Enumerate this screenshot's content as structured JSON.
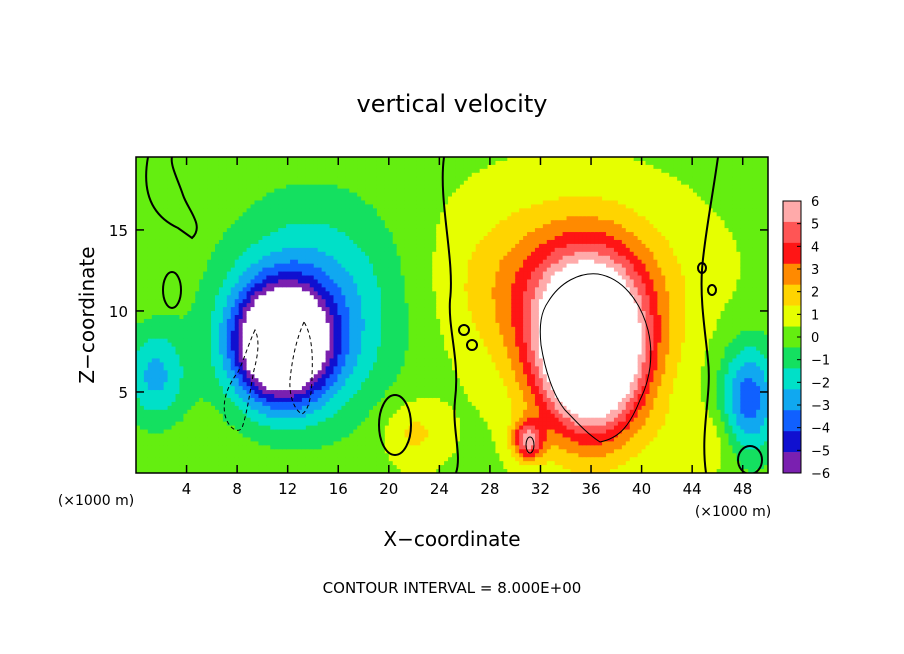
{
  "chart_data": {
    "type": "heatmap",
    "title": "vertical velocity",
    "xlabel": "X−coordinate",
    "ylabel": "Z−coordinate",
    "x_unit": "(×1000 m)",
    "x_unit_right": "(×1000 m)",
    "footer": "CONTOUR INTERVAL = 8.000E+00",
    "xlim": [
      0,
      50
    ],
    "ylim": [
      0,
      19.5
    ],
    "x_ticks": [
      4,
      8,
      12,
      16,
      20,
      24,
      28,
      32,
      36,
      40,
      44,
      48
    ],
    "y_ticks": [
      5,
      10,
      15
    ],
    "colorbar": {
      "levels": [
        6,
        5,
        4,
        3,
        2,
        1,
        0,
        -1,
        -2,
        -3,
        -4,
        -5,
        -6
      ],
      "labels": [
        "6",
        "5",
        "4",
        "3",
        "2",
        "1",
        "0",
        "−1",
        "−2",
        "−3",
        "−4",
        "−5",
        "−6"
      ],
      "colors": [
        "#ffaaaa",
        "#ff5555",
        "#ff1515",
        "#ff8a00",
        "#ffd400",
        "#e6ff00",
        "#64ee10",
        "#14e060",
        "#00e0c8",
        "#10a8f0",
        "#1060ff",
        "#1010d0",
        "#7a20b0"
      ],
      "above_max_color": "#ffffff",
      "below_min_color": "#ffffff"
    },
    "field": {
      "background": 0.3,
      "features": [
        {
          "name": "updraft",
          "x": 36,
          "z": 7.5,
          "sx": 4.2,
          "sz": 5.0,
          "amplitude": 12
        },
        {
          "name": "updraft-halo",
          "x": 34,
          "z": 11.5,
          "sx": 8.5,
          "sz": 5.0,
          "amplitude": 3.2
        },
        {
          "name": "updraft-small",
          "x": 31,
          "z": 2,
          "sx": 1.2,
          "sz": 1.2,
          "amplitude": 5
        },
        {
          "name": "downdraft-main",
          "x": 11.5,
          "z": 8,
          "sx": 3.6,
          "sz": 3.4,
          "amplitude": -11
        },
        {
          "name": "downdraft-halo",
          "x": 14,
          "z": 10,
          "sx": 7.0,
          "sz": 6.5,
          "amplitude": -3.5
        },
        {
          "name": "downdraft-right",
          "x": 48.5,
          "z": 4.5,
          "sx": 2.2,
          "sz": 3.5,
          "amplitude": -4.5
        },
        {
          "name": "downdraft-left",
          "x": 1.5,
          "z": 6,
          "sx": 2.5,
          "sz": 3.0,
          "amplitude": -3.0
        },
        {
          "name": "weak-updraft-lower",
          "x": 22,
          "z": 2.5,
          "sx": 2.5,
          "sz": 2.0,
          "amplitude": 1.6
        },
        {
          "name": "weak-updraft-right",
          "x": 45,
          "z": 2,
          "sx": 3.0,
          "sz": 2.0,
          "amplitude": 1.2
        }
      ]
    },
    "grid": false
  }
}
